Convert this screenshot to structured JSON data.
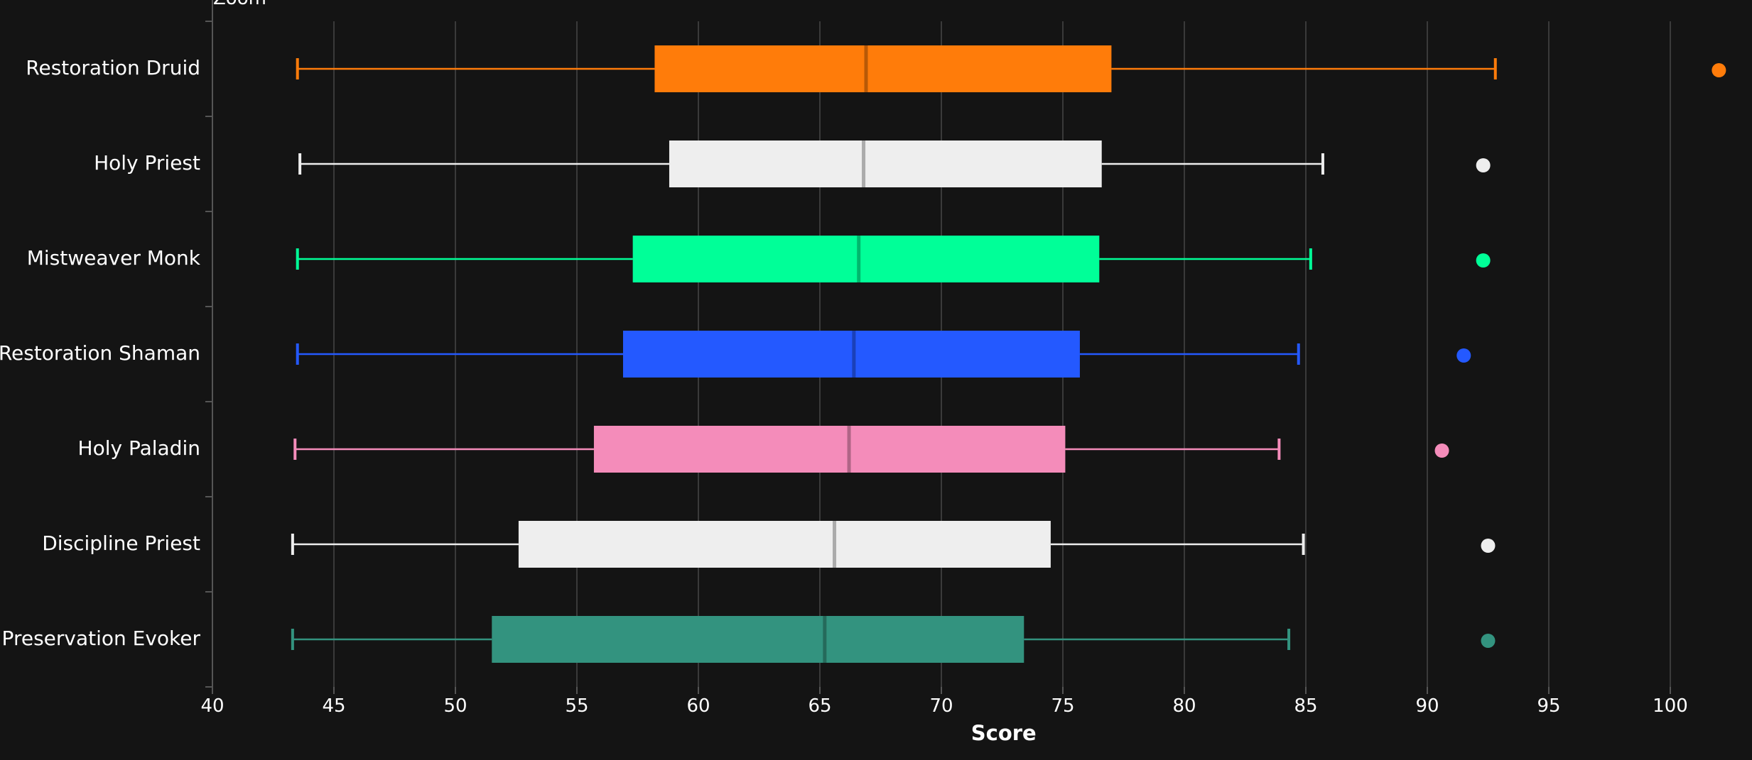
{
  "zoom_label": "Zoom",
  "chart_data": {
    "type": "box",
    "orientation": "horizontal",
    "xlabel": "Score",
    "xlim": [
      40,
      102.5
    ],
    "xticks": [
      40,
      45,
      50,
      55,
      60,
      65,
      70,
      75,
      80,
      85,
      90,
      95,
      100
    ],
    "grid": true,
    "series": [
      {
        "name": "Restoration Druid",
        "color": "#ff7c0a",
        "min": 43.5,
        "q1": 58.2,
        "median": 66.9,
        "q3": 77.0,
        "max": 92.8,
        "outliers": [
          102.0
        ]
      },
      {
        "name": "Holy Priest",
        "color": "#eeeeee",
        "min": 43.6,
        "q1": 58.8,
        "median": 66.8,
        "q3": 76.6,
        "max": 85.7,
        "outliers": [
          92.3
        ]
      },
      {
        "name": "Mistweaver Monk",
        "color": "#00ff98",
        "min": 43.5,
        "q1": 57.3,
        "median": 66.6,
        "q3": 76.5,
        "max": 85.2,
        "outliers": [
          92.3
        ]
      },
      {
        "name": "Restoration Shaman",
        "color": "#2459ff",
        "min": 43.5,
        "q1": 56.9,
        "median": 66.4,
        "q3": 75.7,
        "max": 84.7,
        "outliers": [
          91.5
        ]
      },
      {
        "name": "Holy Paladin",
        "color": "#f48cba",
        "min": 43.4,
        "q1": 55.7,
        "median": 66.2,
        "q3": 75.1,
        "max": 83.9,
        "outliers": [
          90.6
        ]
      },
      {
        "name": "Discipline Priest",
        "color": "#eeeeee",
        "min": 43.3,
        "q1": 52.6,
        "median": 65.6,
        "q3": 74.5,
        "max": 84.9,
        "outliers": [
          92.5
        ]
      },
      {
        "name": "Preservation Evoker",
        "color": "#33937f",
        "min": 43.3,
        "q1": 51.5,
        "median": 65.2,
        "q3": 73.4,
        "max": 84.3,
        "outliers": [
          92.5
        ]
      }
    ]
  }
}
